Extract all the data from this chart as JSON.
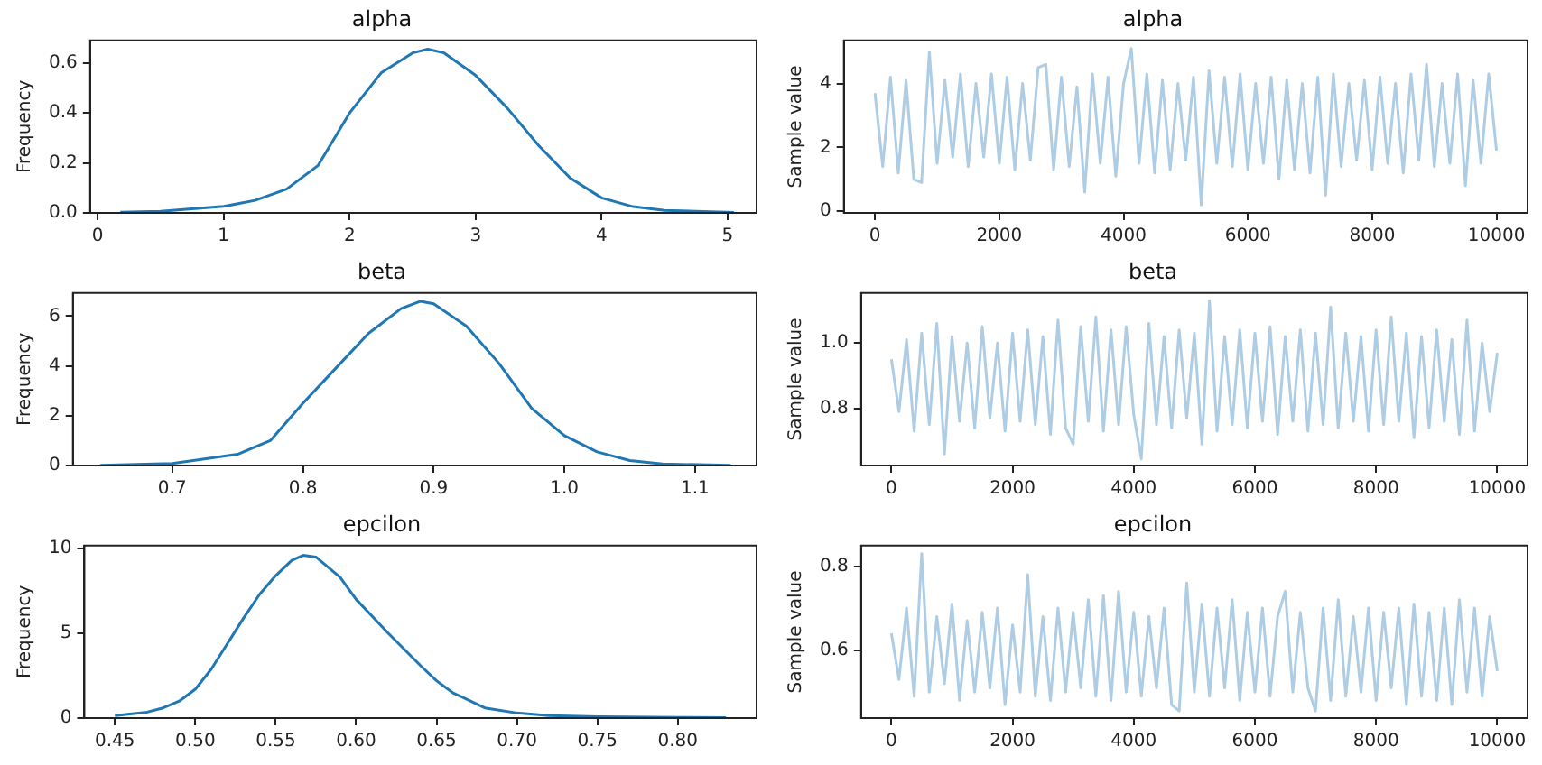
{
  "chart_data": [
    {
      "type": "line",
      "title": "alpha",
      "ylabel": "Frequency",
      "xlim": [
        -0.06,
        5.23
      ],
      "xticks": [
        0,
        1,
        2,
        3,
        4,
        5
      ],
      "ylim": [
        0,
        0.69
      ],
      "yticks": [
        {
          "value": 0,
          "label": "0.0"
        },
        0.2,
        0.4,
        0.6
      ],
      "grid": false,
      "legend": false,
      "marker": "none",
      "series": [
        {
          "color": "#1f77b4",
          "x": [
            0.18,
            0.5,
            1,
            1.25,
            1.5,
            1.75,
            2,
            2.25,
            2.5,
            2.62,
            2.75,
            3,
            3.25,
            3.5,
            3.75,
            4,
            4.25,
            4.5,
            5.05
          ],
          "values": [
            0.003,
            0.006,
            0.026,
            0.05,
            0.095,
            0.19,
            0.4,
            0.56,
            0.64,
            0.655,
            0.64,
            0.55,
            0.42,
            0.27,
            0.14,
            0.06,
            0.025,
            0.01,
            0.002
          ]
        }
      ]
    },
    {
      "type": "line",
      "title": "alpha",
      "ylabel": "Sample value",
      "xlim": [
        -500,
        10500
      ],
      "xticks": [
        0,
        2000,
        4000,
        6000,
        8000,
        10000
      ],
      "ylim": [
        -0.05,
        5.35
      ],
      "yticks": [
        0,
        2,
        4
      ],
      "grid": false,
      "legend": false,
      "marker": "none",
      "x": [
        0,
        125,
        250,
        375,
        500,
        625,
        750,
        875,
        1000,
        1125,
        1250,
        1375,
        1500,
        1625,
        1750,
        1875,
        2000,
        2125,
        2250,
        2375,
        2500,
        2625,
        2750,
        2875,
        3000,
        3125,
        3250,
        3375,
        3500,
        3625,
        3750,
        3875,
        4000,
        4125,
        4250,
        4375,
        4500,
        4625,
        4750,
        4875,
        5000,
        5125,
        5250,
        5375,
        5500,
        5625,
        5750,
        5875,
        6000,
        6125,
        6250,
        6375,
        6500,
        6625,
        6750,
        6875,
        7000,
        7125,
        7250,
        7375,
        7500,
        7625,
        7750,
        7875,
        8000,
        8125,
        8250,
        8375,
        8500,
        8625,
        8750,
        8875,
        9000,
        9125,
        9250,
        9375,
        9500,
        9625,
        9750,
        9875,
        10000
      ],
      "series": [
        {
          "color": "#aecde4",
          "values": [
            3.7,
            1.4,
            4.2,
            1.2,
            4.1,
            1.0,
            0.9,
            5.0,
            1.5,
            4.1,
            1.7,
            4.3,
            1.4,
            4.0,
            1.7,
            4.3,
            1.5,
            4.2,
            1.3,
            4.0,
            1.6,
            4.5,
            4.6,
            1.3,
            4.2,
            1.4,
            3.9,
            0.6,
            4.3,
            1.5,
            4.2,
            1.1,
            4.0,
            5.1,
            1.5,
            4.3,
            1.2,
            4.1,
            1.3,
            4.0,
            1.6,
            4.2,
            0.2,
            4.4,
            1.5,
            4.2,
            1.4,
            4.3,
            1.3,
            4.0,
            1.5,
            4.2,
            1.0,
            4.1,
            1.3,
            4.0,
            1.2,
            4.2,
            0.5,
            4.3,
            1.4,
            4.0,
            1.6,
            4.1,
            1.3,
            4.2,
            1.5,
            4.0,
            1.2,
            4.3,
            1.6,
            4.6,
            1.4,
            4.0,
            1.5,
            4.3,
            0.8,
            4.1,
            1.5,
            4.3,
            1.9
          ]
        }
      ]
    },
    {
      "type": "line",
      "title": "beta",
      "ylabel": "Frequency",
      "xlim": [
        0.624,
        1.147
      ],
      "xticks": [
        0.7,
        0.8,
        0.9,
        {
          "value": 1,
          "label": "1.0"
        },
        1.1
      ],
      "ylim": [
        0,
        6.93
      ],
      "yticks": [
        0,
        2,
        4,
        6
      ],
      "grid": false,
      "legend": false,
      "marker": "none",
      "series": [
        {
          "color": "#1f77b4",
          "x": [
            0.645,
            0.7,
            0.75,
            0.775,
            0.8,
            0.825,
            0.85,
            0.875,
            0.89,
            0.9,
            0.925,
            0.95,
            0.975,
            1.0,
            1.025,
            1.05,
            1.075,
            1.127
          ],
          "values": [
            0.01,
            0.08,
            0.45,
            1.0,
            2.5,
            3.9,
            5.3,
            6.3,
            6.6,
            6.5,
            5.6,
            4.1,
            2.3,
            1.2,
            0.55,
            0.2,
            0.06,
            0.01
          ]
        }
      ]
    },
    {
      "type": "line",
      "title": "beta",
      "ylabel": "Sample value",
      "xlim": [
        -500,
        10500
      ],
      "xticks": [
        0,
        2000,
        4000,
        6000,
        8000,
        10000
      ],
      "ylim": [
        0.625,
        1.153
      ],
      "yticks": [
        0.8,
        {
          "value": 1,
          "label": "1.0"
        }
      ],
      "grid": false,
      "legend": false,
      "marker": "none",
      "x": [
        0,
        125,
        250,
        375,
        500,
        625,
        750,
        875,
        1000,
        1125,
        1250,
        1375,
        1500,
        1625,
        1750,
        1875,
        2000,
        2125,
        2250,
        2375,
        2500,
        2625,
        2750,
        2875,
        3000,
        3125,
        3250,
        3375,
        3500,
        3625,
        3750,
        3875,
        4000,
        4125,
        4250,
        4375,
        4500,
        4625,
        4750,
        4875,
        5000,
        5125,
        5250,
        5375,
        5500,
        5625,
        5750,
        5875,
        6000,
        6125,
        6250,
        6375,
        6500,
        6625,
        6750,
        6875,
        7000,
        7125,
        7250,
        7375,
        7500,
        7625,
        7750,
        7875,
        8000,
        8125,
        8250,
        8375,
        8500,
        8625,
        8750,
        8875,
        9000,
        9125,
        9250,
        9375,
        9500,
        9625,
        9750,
        9875,
        10000
      ],
      "series": [
        {
          "color": "#aecde4",
          "values": [
            0.95,
            0.79,
            1.01,
            0.73,
            1.03,
            0.75,
            1.06,
            0.66,
            1.02,
            0.76,
            1.0,
            0.74,
            1.05,
            0.77,
            1.0,
            0.73,
            1.03,
            0.76,
            1.04,
            0.75,
            1.02,
            0.72,
            1.07,
            0.74,
            0.69,
            1.05,
            0.76,
            1.08,
            0.73,
            1.04,
            0.75,
            1.05,
            0.78,
            0.645,
            1.06,
            0.75,
            1.02,
            0.74,
            1.04,
            0.77,
            1.03,
            0.69,
            1.13,
            0.73,
            1.02,
            0.75,
            1.04,
            0.74,
            1.03,
            0.76,
            1.05,
            0.72,
            1.02,
            0.76,
            1.04,
            0.73,
            1.03,
            0.75,
            1.11,
            0.74,
            1.03,
            0.76,
            1.02,
            0.73,
            1.04,
            0.75,
            1.08,
            0.76,
            1.03,
            0.71,
            1.02,
            0.74,
            1.04,
            0.76,
            1.01,
            0.72,
            1.07,
            0.73,
            1.0,
            0.79,
            0.97
          ]
        }
      ]
    },
    {
      "type": "line",
      "title": "epcilon",
      "ylabel": "Frequency",
      "xlim": [
        0.431,
        0.849
      ],
      "xticks": [
        0.45,
        {
          "value": 0.5,
          "label": "0.50"
        },
        0.55,
        {
          "value": 0.6,
          "label": "0.60"
        },
        0.65,
        {
          "value": 0.7,
          "label": "0.70"
        },
        0.75,
        {
          "value": 0.8,
          "label": "0.80"
        }
      ],
      "ylim": [
        0,
        10.17
      ],
      "yticks": [
        0,
        5,
        10
      ],
      "grid": false,
      "legend": false,
      "marker": "none",
      "series": [
        {
          "color": "#1f77b4",
          "x": [
            0.45,
            0.47,
            0.48,
            0.49,
            0.5,
            0.51,
            0.52,
            0.53,
            0.54,
            0.55,
            0.56,
            0.567,
            0.575,
            0.59,
            0.6,
            0.62,
            0.64,
            0.65,
            0.66,
            0.68,
            0.7,
            0.72,
            0.75,
            0.8,
            0.83
          ],
          "values": [
            0.15,
            0.35,
            0.6,
            1.0,
            1.7,
            2.9,
            4.4,
            5.9,
            7.3,
            8.4,
            9.3,
            9.6,
            9.5,
            8.3,
            7.0,
            5.0,
            3.1,
            2.2,
            1.5,
            0.6,
            0.3,
            0.15,
            0.08,
            0.04,
            0.03
          ]
        }
      ]
    },
    {
      "type": "line",
      "title": "epcilon",
      "ylabel": "Sample value",
      "xlim": [
        -500,
        10500
      ],
      "xticks": [
        0,
        2000,
        4000,
        6000,
        8000,
        10000
      ],
      "ylim": [
        0.438,
        0.849
      ],
      "yticks": [
        0.6,
        0.8
      ],
      "grid": false,
      "legend": false,
      "marker": "none",
      "x": [
        0,
        125,
        250,
        375,
        500,
        625,
        750,
        875,
        1000,
        1125,
        1250,
        1375,
        1500,
        1625,
        1750,
        1875,
        2000,
        2125,
        2250,
        2375,
        2500,
        2625,
        2750,
        2875,
        3000,
        3125,
        3250,
        3375,
        3500,
        3625,
        3750,
        3875,
        4000,
        4125,
        4250,
        4375,
        4500,
        4625,
        4750,
        4875,
        5000,
        5125,
        5250,
        5375,
        5500,
        5625,
        5750,
        5875,
        6000,
        6125,
        6250,
        6375,
        6500,
        6625,
        6750,
        6875,
        7000,
        7125,
        7250,
        7375,
        7500,
        7625,
        7750,
        7875,
        8000,
        8125,
        8250,
        8375,
        8500,
        8625,
        8750,
        8875,
        9000,
        9125,
        9250,
        9375,
        9500,
        9625,
        9750,
        9875,
        10000
      ],
      "series": [
        {
          "color": "#aecde4",
          "values": [
            0.64,
            0.53,
            0.7,
            0.49,
            0.83,
            0.5,
            0.68,
            0.52,
            0.71,
            0.48,
            0.67,
            0.5,
            0.69,
            0.51,
            0.7,
            0.47,
            0.66,
            0.5,
            0.78,
            0.49,
            0.68,
            0.48,
            0.7,
            0.5,
            0.69,
            0.51,
            0.72,
            0.49,
            0.73,
            0.48,
            0.74,
            0.5,
            0.69,
            0.49,
            0.68,
            0.51,
            0.7,
            0.47,
            0.455,
            0.76,
            0.5,
            0.71,
            0.49,
            0.7,
            0.51,
            0.72,
            0.48,
            0.69,
            0.5,
            0.7,
            0.49,
            0.68,
            0.74,
            0.5,
            0.69,
            0.51,
            0.455,
            0.7,
            0.48,
            0.72,
            0.49,
            0.68,
            0.5,
            0.7,
            0.48,
            0.69,
            0.51,
            0.7,
            0.47,
            0.71,
            0.49,
            0.69,
            0.48,
            0.7,
            0.47,
            0.72,
            0.5,
            0.7,
            0.49,
            0.68,
            0.55
          ]
        }
      ]
    }
  ]
}
